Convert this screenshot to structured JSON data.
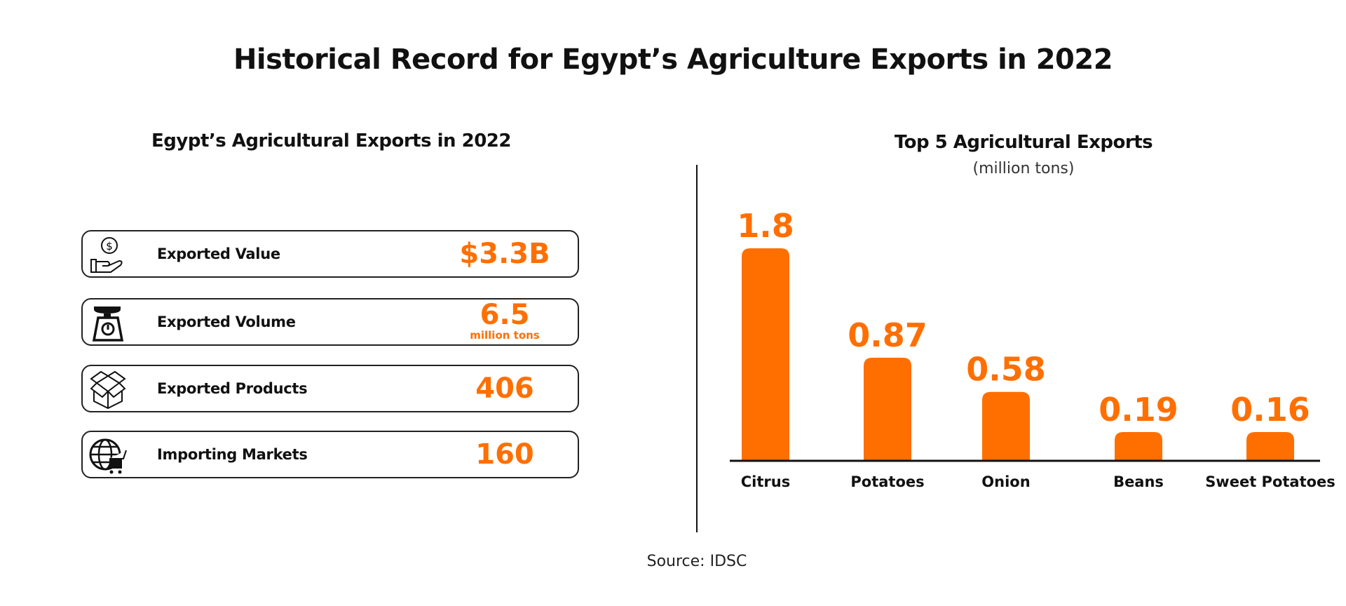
{
  "title": "Historical Record for Egypt’s Agriculture Exports in 2022",
  "left_panel": {
    "title": "Egypt’s Agricultural Exports in 2022",
    "stats": [
      {
        "icon": "hand-dollar-icon",
        "label": "Exported Value",
        "value": "$3.3B"
      },
      {
        "icon": "scale-icon",
        "label": "Exported Volume",
        "value": "6.5",
        "unit": "million tons"
      },
      {
        "icon": "box-icon",
        "label": "Exported Products",
        "value": "406"
      },
      {
        "icon": "globe-cart-icon",
        "label": "Importing Markets",
        "value": "160"
      }
    ]
  },
  "chart_data": {
    "type": "bar",
    "title": "Top 5 Agricultural Exports",
    "subtitle": "(million tons)",
    "categories": [
      "Citrus",
      "Potatoes",
      "Onion",
      "Beans",
      "Sweet Potatoes"
    ],
    "values": [
      1.8,
      0.87,
      0.58,
      0.19,
      0.16
    ],
    "value_labels": [
      "1.8",
      "0.87",
      "0.58",
      "0.19",
      "0.16"
    ],
    "ylim": [
      0,
      1.8
    ],
    "grid": false,
    "bar_color": "#ff6f00"
  },
  "source": "Source: IDSC",
  "colors": {
    "accent": "#ff6f00",
    "text": "#111111"
  }
}
